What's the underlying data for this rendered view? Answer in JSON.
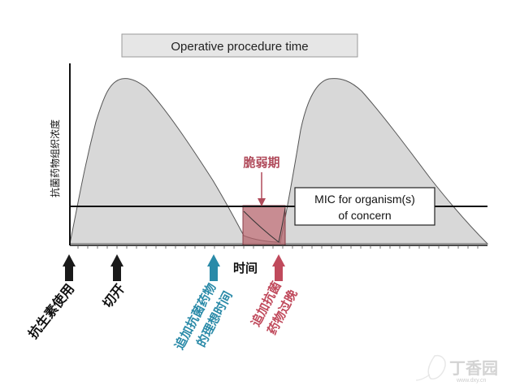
{
  "banner": {
    "label": "Operative procedure time"
  },
  "y_axis": {
    "label": "抗菌药物组织浓度"
  },
  "x_axis": {
    "label": "时间"
  },
  "mic_line": {
    "label_line1": "MIC for organism(s)",
    "label_line2": "of concern"
  },
  "vulnerable_period": {
    "label": "脆弱期"
  },
  "markers": {
    "antibiotic_use": {
      "label": "抗生素使用"
    },
    "incision": {
      "label": "切开"
    },
    "ideal_redose": {
      "line1": "追加抗菌药物",
      "line2": "的理想时间"
    },
    "late_redose": {
      "line1": "追加抗菌",
      "line2": "药物过晚"
    }
  },
  "watermark": {
    "text": "丁香园",
    "sub": "www.dxy.cn"
  },
  "colors": {
    "curve_fill": "#d8d8d8",
    "vulnerable_fill": "#b5656e",
    "vulnerable_label": "#b04a5a",
    "ideal_arrow": "#2a8aa8",
    "late_arrow": "#c04a5c",
    "marker_arrow": "#1a1a1a",
    "banner_fill": "#e6e6e6"
  },
  "icons": {
    "marker_arrow": "up-arrow-icon"
  }
}
